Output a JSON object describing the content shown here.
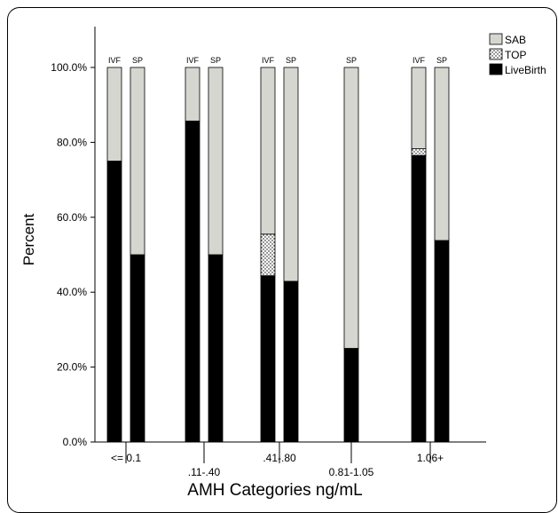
{
  "chart_data": {
    "type": "bar",
    "stacked": true,
    "percent": true,
    "xlabel": "AMH Categories ng/mL",
    "ylabel": "Percent",
    "ylim": [
      0,
      100
    ],
    "yticks": [
      "0.0%",
      "20.0%",
      "40.0%",
      "60.0%",
      "80.0%",
      "100.0%"
    ],
    "categories": [
      "<= 0.1",
      ".11-.40",
      ".41-.80",
      "0.81-1.05",
      "1.06+"
    ],
    "legend": {
      "position": "top-right",
      "items": [
        {
          "name": "SAB",
          "color": "#d6d6d0",
          "pattern": "none"
        },
        {
          "name": "TOP",
          "color": "#ffffff",
          "pattern": "dots"
        },
        {
          "name": "LiveBirth",
          "color": "#000000",
          "pattern": "none"
        }
      ]
    },
    "bars": [
      {
        "category": "<= 0.1",
        "label": "IVF",
        "LiveBirth": 75.0,
        "TOP": 0.0,
        "SAB": 25.0
      },
      {
        "category": "<= 0.1",
        "label": "SP",
        "LiveBirth": 50.0,
        "TOP": 0.0,
        "SAB": 50.0
      },
      {
        "category": ".11-.40",
        "label": "IVF",
        "LiveBirth": 85.7,
        "TOP": 0.0,
        "SAB": 14.3
      },
      {
        "category": ".11-.40",
        "label": "SP",
        "LiveBirth": 50.0,
        "TOP": 0.0,
        "SAB": 50.0
      },
      {
        "category": ".41-.80",
        "label": "IVF",
        "LiveBirth": 44.4,
        "TOP": 11.1,
        "SAB": 44.5
      },
      {
        "category": ".41-.80",
        "label": "SP",
        "LiveBirth": 42.9,
        "TOP": 0.0,
        "SAB": 57.1
      },
      {
        "category": "0.81-1.05",
        "label": "SP",
        "LiveBirth": 25.0,
        "TOP": 0.0,
        "SAB": 75.0
      },
      {
        "category": "1.06+",
        "label": "IVF",
        "LiveBirth": 76.5,
        "TOP": 1.8,
        "SAB": 21.7
      },
      {
        "category": "1.06+",
        "label": "SP",
        "LiveBirth": 53.8,
        "TOP": 0.0,
        "SAB": 46.2
      }
    ]
  }
}
